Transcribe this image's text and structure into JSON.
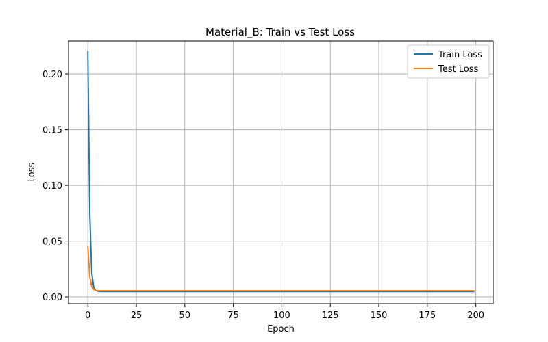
{
  "chart_data": {
    "type": "line",
    "title": "Material_B: Train vs Test Loss",
    "xlabel": "Epoch",
    "ylabel": "Loss",
    "xlim": [
      -9.95,
      208.95
    ],
    "ylim": [
      -0.0061,
      0.2295
    ],
    "xticks": [
      0,
      25,
      50,
      75,
      100,
      125,
      150,
      175,
      200
    ],
    "xtick_labels": [
      "0",
      "25",
      "50",
      "75",
      "100",
      "125",
      "150",
      "175",
      "200"
    ],
    "yticks": [
      0.0,
      0.05,
      0.1,
      0.15,
      0.2
    ],
    "ytick_labels": [
      "0.00",
      "0.05",
      "0.10",
      "0.15",
      "0.20"
    ],
    "grid": true,
    "legend_position": "top-right",
    "series": [
      {
        "name": "Train Loss",
        "color": "#1f77b4",
        "x": [
          0,
          1,
          2,
          3,
          4,
          5,
          6,
          7,
          8,
          10,
          15,
          20,
          30,
          50,
          75,
          100,
          125,
          150,
          175,
          199
        ],
        "y": [
          0.22,
          0.075,
          0.022,
          0.009,
          0.0058,
          0.0051,
          0.0049,
          0.0048,
          0.0048,
          0.0048,
          0.0048,
          0.0048,
          0.0048,
          0.0048,
          0.0048,
          0.0048,
          0.0048,
          0.0048,
          0.0048,
          0.0048
        ]
      },
      {
        "name": "Test Loss",
        "color": "#ff7f0e",
        "x": [
          0,
          1,
          2,
          3,
          4,
          5,
          6,
          7,
          8,
          10,
          15,
          20,
          30,
          50,
          75,
          100,
          125,
          150,
          175,
          199
        ],
        "y": [
          0.045,
          0.018,
          0.0095,
          0.0068,
          0.0059,
          0.0056,
          0.0055,
          0.0055,
          0.0055,
          0.0055,
          0.0055,
          0.0055,
          0.0055,
          0.0055,
          0.0055,
          0.0055,
          0.0055,
          0.0055,
          0.0055,
          0.0055
        ]
      }
    ]
  }
}
